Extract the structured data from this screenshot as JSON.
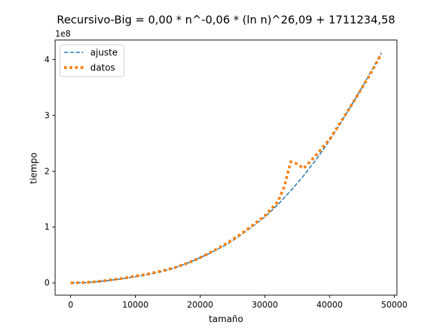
{
  "chart_data": {
    "type": "line",
    "title": "Recursivo-Big = 0,00 * n^-0,06 * (ln n)^26,09 + 1711234,58",
    "xlabel": "tamaño",
    "ylabel": "tiempo",
    "offset_text": "1e8",
    "xlim": [
      -2400,
      50400
    ],
    "ylim": [
      -0.22,
      4.35
    ],
    "xticks": [
      0,
      10000,
      20000,
      30000,
      40000,
      50000
    ],
    "xtick_labels": [
      "0",
      "10000",
      "20000",
      "30000",
      "40000",
      "50000"
    ],
    "yticks": [
      0,
      1,
      2,
      3,
      4
    ],
    "ytick_labels": [
      "0",
      "1",
      "2",
      "3",
      "4"
    ],
    "grid": false,
    "legend_position": "upper left",
    "series": [
      {
        "name": "ajuste",
        "style": "dashed",
        "color": "#1f77b4",
        "x": [
          0,
          2000,
          4000,
          6000,
          8000,
          10000,
          12000,
          14000,
          16000,
          18000,
          20000,
          22000,
          24000,
          26000,
          28000,
          30000,
          32000,
          34000,
          36000,
          38000,
          40000,
          42000,
          44000,
          46000,
          48000
        ],
        "y": [
          0.0,
          0.002,
          0.02,
          0.045,
          0.075,
          0.11,
          0.15,
          0.2,
          0.27,
          0.35,
          0.45,
          0.56,
          0.68,
          0.83,
          1.0,
          1.18,
          1.4,
          1.65,
          1.92,
          2.22,
          2.55,
          2.92,
          3.3,
          3.7,
          4.12
        ]
      },
      {
        "name": "datos",
        "style": "dotted",
        "color": "#ff7f0e",
        "x": [
          0,
          2000,
          4000,
          6000,
          8000,
          10000,
          12000,
          14000,
          16000,
          18000,
          20000,
          22000,
          24000,
          26000,
          28000,
          30000,
          32000,
          33000,
          34000,
          35000,
          36000,
          38000,
          40000,
          42000,
          44000,
          46000,
          48000
        ],
        "y": [
          0.0,
          0.005,
          0.02,
          0.05,
          0.08,
          0.12,
          0.16,
          0.21,
          0.27,
          0.35,
          0.45,
          0.57,
          0.7,
          0.85,
          1.02,
          1.2,
          1.45,
          1.72,
          2.17,
          2.13,
          2.05,
          2.3,
          2.57,
          2.93,
          3.3,
          3.68,
          4.1
        ]
      }
    ]
  }
}
